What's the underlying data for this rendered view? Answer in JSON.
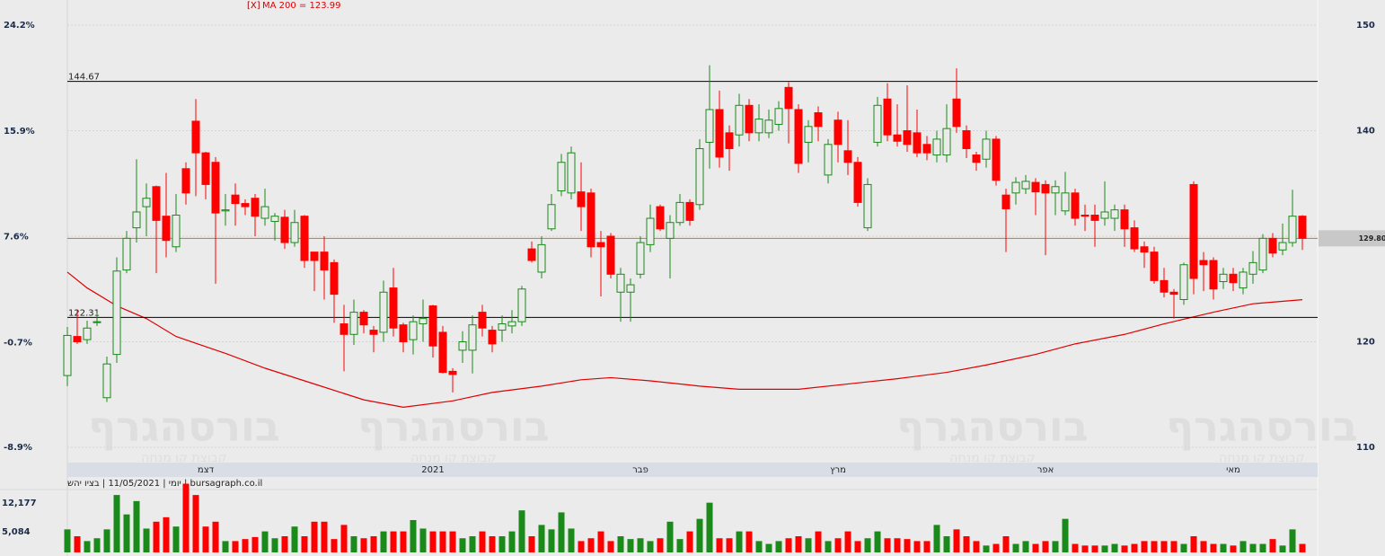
{
  "chart_data": [
    {
      "type": "candlestick",
      "annotation": {
        "close": "[X]",
        "text": "MA 200 = 123.99"
      },
      "up_color": "#1a8a1a",
      "down_color": "#ff0000",
      "xlim": [
        0,
        125
      ],
      "xticks": [
        {
          "value": 14,
          "label": "דצמ"
        },
        {
          "value": 37,
          "label": "2021"
        },
        {
          "value": 58,
          "label": "פבר"
        },
        {
          "value": 78,
          "label": "מרץ"
        },
        {
          "value": 99,
          "label": "אפר"
        },
        {
          "value": 118,
          "label": "מאי"
        }
      ],
      "ylim": [
        110,
        150
      ],
      "yticks": [
        110,
        120,
        130,
        140,
        150
      ],
      "y2lim": [
        -8.9,
        24.2
      ],
      "y2ticks": [
        {
          "value": -8.9,
          "label": "-8.9%"
        },
        {
          "value": -0.7,
          "label": "-0.7%"
        },
        {
          "value": 7.6,
          "label": "7.6%"
        },
        {
          "value": 15.9,
          "label": "15.9%"
        },
        {
          "value": 24.2,
          "label": "24.2%"
        }
      ],
      "grid": true,
      "open": [
        116.8,
        120.5,
        120.2,
        121.9,
        114.7,
        118.8,
        126.8,
        130.8,
        132.8,
        134.7,
        131.9,
        129.0,
        136.4,
        140.9,
        137.9,
        137,
        132.4,
        133.9,
        133.1,
        133.6,
        131.7,
        131.4,
        131.8,
        129.4,
        131.9,
        128.5,
        128.5,
        127.5,
        121.7,
        120.7,
        122.8,
        121.1,
        120.9,
        125.1,
        121.6,
        120.2,
        121.7,
        123.4,
        120.9,
        117.2,
        119.2,
        119.2,
        122.8,
        121.1,
        121.1,
        121.5,
        121.9,
        128.8,
        126.6,
        130.7,
        134.3,
        134.1,
        134.2,
        134.1,
        129.4,
        130.0,
        124.7,
        124.7,
        126.4,
        129.2,
        132.8,
        129.8,
        131.3,
        133.2,
        133.0,
        138.9,
        142.0,
        139.8,
        139.6,
        142.4,
        139.8,
        139.8,
        140.6,
        144.1,
        142.0,
        138.9,
        141.7,
        135.8,
        141.0,
        138.1,
        137.0,
        130.8,
        138.9,
        143.0,
        139.6,
        140.0,
        139.8,
        138.7,
        137.7,
        137.7,
        143.0,
        140.0,
        137.7,
        137.3,
        139.2,
        133.9,
        134.1,
        134.5,
        135.1,
        134.9,
        134.1,
        132.4,
        134.1,
        132.0,
        132.0,
        131.7,
        131.7,
        132.5,
        130.8,
        129.0,
        128.5,
        125.8,
        124.7,
        124.0,
        134.9,
        127.7,
        127.7,
        125.7,
        126.4,
        125.1,
        126.4,
        126.8,
        129.8,
        128.7,
        129.4,
        131.9
      ],
      "high": [
        121.4,
        123,
        122,
        122.8,
        118.6,
        128,
        130.5,
        137.3,
        135,
        134.8,
        136,
        134,
        137,
        143,
        138,
        137.5,
        134,
        135,
        133.5,
        134,
        134.5,
        132.2,
        132.5,
        132.5,
        132,
        128.5,
        130,
        127.8,
        123.5,
        124,
        123,
        121.5,
        125.8,
        127,
        121.8,
        122.5,
        124,
        123.5,
        121.5,
        117.5,
        121,
        122.5,
        123.5,
        121.5,
        122.5,
        123,
        125.3,
        129.5,
        130,
        134,
        137.8,
        138.5,
        137,
        134.5,
        130.5,
        130.3,
        127,
        126,
        130,
        133,
        133,
        132,
        134,
        133.5,
        139.2,
        146.2,
        143.8,
        140.5,
        143.5,
        143,
        142.5,
        142,
        142.8,
        144.6,
        142.5,
        141,
        142.3,
        139.2,
        141.8,
        141,
        137.5,
        135.5,
        143.2,
        144.5,
        142.5,
        144.3,
        142,
        139.5,
        140,
        142.5,
        145.9,
        140.5,
        138,
        140,
        139.5,
        134.5,
        135.6,
        135.8,
        135.5,
        135.3,
        135.3,
        136.1,
        134.5,
        133,
        133,
        135.2,
        133,
        133,
        131.5,
        129.5,
        129,
        127,
        125,
        127.5,
        135.2,
        128.5,
        128,
        127,
        127,
        127,
        128.6,
        130.2,
        130.3,
        131.2,
        134.4,
        132
      ],
      "low": [
        115.8,
        119.8,
        119.8,
        121.5,
        114.3,
        118,
        126.5,
        129.4,
        130,
        126.5,
        128,
        128.5,
        133,
        133.8,
        133.5,
        125.5,
        131,
        131,
        132,
        130,
        131,
        129.6,
        128.8,
        129,
        127,
        124.8,
        124,
        121.8,
        117.2,
        119.7,
        120.8,
        119,
        120,
        120.5,
        119,
        118.8,
        120,
        118.5,
        117,
        115.2,
        118,
        117,
        120.5,
        119,
        120,
        120.8,
        121.5,
        127.5,
        126,
        130.5,
        133.8,
        133.5,
        130.5,
        128,
        124.3,
        126,
        121.9,
        121.9,
        126,
        128.5,
        130.5,
        126,
        131,
        131,
        132.5,
        136.4,
        136.5,
        136.2,
        138.5,
        139,
        139,
        139.3,
        140,
        138.8,
        136,
        137,
        139,
        135,
        137,
        135.8,
        132.8,
        130.5,
        138.5,
        139,
        138.5,
        138,
        137.5,
        137.2,
        137,
        137,
        139.8,
        137.4,
        136.2,
        136.5,
        134.8,
        128.5,
        133,
        134,
        132,
        128.2,
        132,
        132,
        131,
        130.5,
        129,
        131,
        130.5,
        129,
        128.5,
        127,
        125.5,
        124.2,
        122.2,
        123.5,
        124.5,
        124.8,
        124,
        125,
        124.8,
        124.5,
        125.5,
        126.5,
        128,
        128.2,
        129,
        128.7
      ],
      "close": [
        120.6,
        120.0,
        121.3,
        121.9,
        117.9,
        126.7,
        129.8,
        132.3,
        133.6,
        131.5,
        129.6,
        132.0,
        134.1,
        137.9,
        134.9,
        132.2,
        132.5,
        133.1,
        132.8,
        131.9,
        132.8,
        131.9,
        129.4,
        131.3,
        127.7,
        127.7,
        126.8,
        124.5,
        120.7,
        122.8,
        121.6,
        120.7,
        124.7,
        121.3,
        120.0,
        121.9,
        122.2,
        119.6,
        117.1,
        116.9,
        120.0,
        121.6,
        121.3,
        119.8,
        121.7,
        121.9,
        125.0,
        127.7,
        129.2,
        133.0,
        137.0,
        137.9,
        132.8,
        129.0,
        129.0,
        126.4,
        126.4,
        125.4,
        129.4,
        131.7,
        130.7,
        131.3,
        133.2,
        131.5,
        138.3,
        142.0,
        137.5,
        138.3,
        142.4,
        139.8,
        141.1,
        141.0,
        142.1,
        142.1,
        136.9,
        140.4,
        140.4,
        138.7,
        138.7,
        137.0,
        133.2,
        134.9,
        142.4,
        139.6,
        139.0,
        138.7,
        137.9,
        137.9,
        139.2,
        140.2,
        140.4,
        138.3,
        137.0,
        139.2,
        135.3,
        132.6,
        135.1,
        135.2,
        134.2,
        134.1,
        134.7,
        134.1,
        131.7,
        131.9,
        131.5,
        132.3,
        132.5,
        130.7,
        128.8,
        128.5,
        125.8,
        124.7,
        124.5,
        127.3,
        126.0,
        127.3,
        125.0,
        126.4,
        125.6,
        126.6,
        127.5,
        129.8,
        128.4,
        129.4,
        131.9,
        129.8
      ],
      "ma": {
        "color": "#e00000",
        "x": [
          0,
          2,
          5,
          8,
          11,
          16,
          20,
          25,
          30,
          34,
          39,
          43,
          48,
          52,
          55,
          59,
          64,
          68,
          74,
          80,
          84,
          89,
          93,
          98,
          102,
          107,
          111,
          116,
          120,
          125
        ],
        "values": [
          126.6,
          125.1,
          123.4,
          122.2,
          120.5,
          118.9,
          117.5,
          116.0,
          114.5,
          113.8,
          114.4,
          115.2,
          115.8,
          116.4,
          116.6,
          116.3,
          115.8,
          115.5,
          115.5,
          116.1,
          116.5,
          117.1,
          117.8,
          118.8,
          119.8,
          120.7,
          121.7,
          122.8,
          123.6,
          123.99
        ]
      },
      "levels": [
        {
          "value": 144.67,
          "label": "144.67"
        },
        {
          "value": 122.31,
          "label": "122.31"
        }
      ],
      "last": {
        "value": 129.8,
        "label": "129.80",
        "color": "#c8772a"
      }
    },
    {
      "type": "bar",
      "ylim": [
        0,
        18000
      ],
      "yticks": [
        {
          "value": 5084,
          "label": "5,084"
        },
        {
          "value": 12177,
          "label": "12,177"
        }
      ],
      "values": [
        5700,
        4000,
        2800,
        3500,
        5700,
        14200,
        9400,
        12700,
        5900,
        7600,
        8700,
        6400,
        17000,
        14200,
        6400,
        7600,
        2800,
        2800,
        3300,
        3800,
        5200,
        3500,
        4000,
        6400,
        4000,
        7600,
        7600,
        3300,
        6800,
        4000,
        3500,
        4000,
        5200,
        5200,
        5200,
        8000,
        5900,
        5200,
        5200,
        5200,
        3500,
        4000,
        5200,
        4000,
        4000,
        5200,
        10400,
        4000,
        6800,
        5700,
        9900,
        5900,
        2800,
        3500,
        5200,
        2800,
        4000,
        3300,
        3500,
        2800,
        3500,
        7600,
        3300,
        5200,
        8300,
        12300,
        3500,
        3500,
        5200,
        5200,
        2800,
        2100,
        2800,
        3500,
        4000,
        3500,
        5200,
        2800,
        3500,
        5200,
        2800,
        3500,
        5200,
        3500,
        3500,
        3300,
        2800,
        2800,
        6800,
        4000,
        5700,
        4000,
        2800,
        1700,
        2100,
        4000,
        2100,
        2800,
        2100,
        2800,
        2800,
        8300,
        2100,
        1700,
        1700,
        1700,
        2100,
        1700,
        2100,
        2800,
        2800,
        2800,
        2800,
        2100,
        4000,
        2800,
        2100,
        2100,
        1700,
        2800,
        2100,
        2100,
        3300,
        1700,
        5700,
        2100
      ]
    }
  ],
  "info": "יומי | 11/05/2021 | בציו יהש | bursagraph.co.il",
  "watermark": {
    "title": "בורסהגרף",
    "subtitle": "קבוצת קו מנחה"
  }
}
